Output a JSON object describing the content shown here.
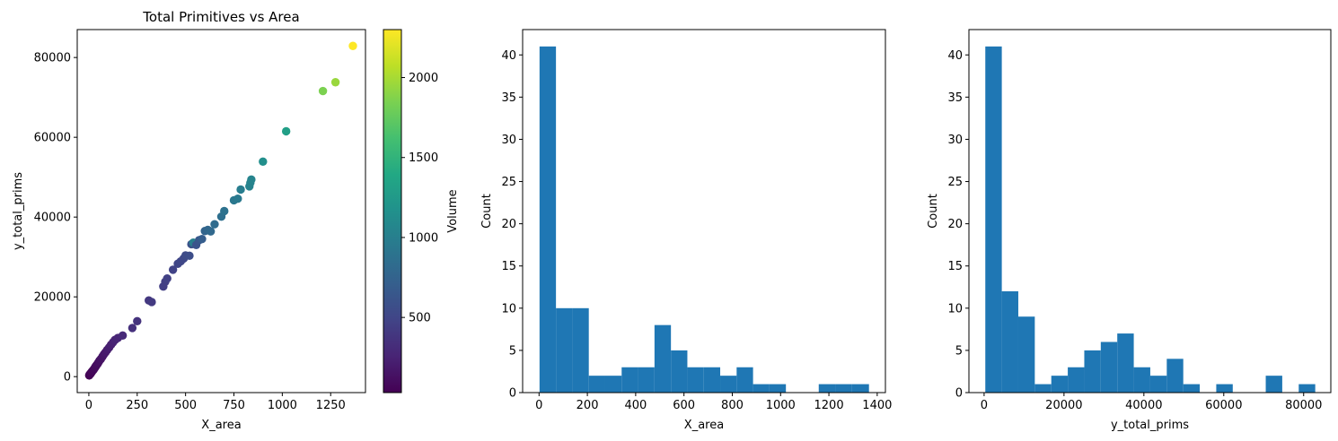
{
  "chart_data": [
    {
      "type": "scatter",
      "title": "Total Primitives vs Area",
      "xlabel": "X_area",
      "ylabel": "y_total_prims",
      "xlim": [
        -60,
        1430
      ],
      "ylim": [
        -4000,
        87000
      ],
      "xticks": [
        0,
        250,
        500,
        750,
        1000,
        1250
      ],
      "yticks": [
        0,
        20000,
        40000,
        60000,
        80000
      ],
      "grid": false,
      "colorbar": {
        "label": "Volume",
        "range": [
          30,
          2300
        ],
        "ticks": [
          500,
          1000,
          1500,
          2000
        ],
        "colormap": "viridis"
      },
      "points": [
        {
          "x": 2,
          "y": 300,
          "c": 30
        },
        {
          "x": 4,
          "y": 500,
          "c": 35
        },
        {
          "x": 6,
          "y": 600,
          "c": 40
        },
        {
          "x": 8,
          "y": 700,
          "c": 45
        },
        {
          "x": 10,
          "y": 800,
          "c": 50
        },
        {
          "x": 12,
          "y": 1000,
          "c": 55
        },
        {
          "x": 14,
          "y": 1100,
          "c": 60
        },
        {
          "x": 17,
          "y": 1300,
          "c": 65
        },
        {
          "x": 20,
          "y": 1500,
          "c": 70
        },
        {
          "x": 24,
          "y": 1700,
          "c": 75
        },
        {
          "x": 28,
          "y": 2000,
          "c": 80
        },
        {
          "x": 32,
          "y": 2300,
          "c": 90
        },
        {
          "x": 36,
          "y": 2600,
          "c": 95
        },
        {
          "x": 40,
          "y": 2900,
          "c": 100
        },
        {
          "x": 45,
          "y": 3200,
          "c": 110
        },
        {
          "x": 50,
          "y": 3600,
          "c": 120
        },
        {
          "x": 55,
          "y": 4000,
          "c": 130
        },
        {
          "x": 62,
          "y": 4400,
          "c": 140
        },
        {
          "x": 70,
          "y": 5000,
          "c": 155
        },
        {
          "x": 78,
          "y": 5600,
          "c": 170
        },
        {
          "x": 86,
          "y": 6100,
          "c": 185
        },
        {
          "x": 95,
          "y": 6700,
          "c": 200
        },
        {
          "x": 105,
          "y": 7300,
          "c": 215
        },
        {
          "x": 115,
          "y": 8000,
          "c": 230
        },
        {
          "x": 125,
          "y": 8600,
          "c": 245
        },
        {
          "x": 135,
          "y": 9200,
          "c": 255
        },
        {
          "x": 150,
          "y": 9700,
          "c": 270
        },
        {
          "x": 175,
          "y": 10300,
          "c": 300
        },
        {
          "x": 225,
          "y": 12200,
          "c": 340
        },
        {
          "x": 250,
          "y": 13900,
          "c": 360
        },
        {
          "x": 310,
          "y": 19100,
          "c": 400
        },
        {
          "x": 325,
          "y": 18700,
          "c": 410
        },
        {
          "x": 385,
          "y": 22600,
          "c": 440
        },
        {
          "x": 395,
          "y": 23800,
          "c": 450
        },
        {
          "x": 405,
          "y": 24600,
          "c": 460
        },
        {
          "x": 435,
          "y": 26800,
          "c": 480
        },
        {
          "x": 460,
          "y": 28300,
          "c": 500
        },
        {
          "x": 475,
          "y": 28900,
          "c": 510
        },
        {
          "x": 490,
          "y": 29600,
          "c": 520
        },
        {
          "x": 500,
          "y": 30400,
          "c": 540
        },
        {
          "x": 520,
          "y": 30300,
          "c": 560
        },
        {
          "x": 530,
          "y": 33200,
          "c": 600
        },
        {
          "x": 540,
          "y": 33600,
          "c": 1000
        },
        {
          "x": 555,
          "y": 33000,
          "c": 620
        },
        {
          "x": 570,
          "y": 34200,
          "c": 640
        },
        {
          "x": 585,
          "y": 34500,
          "c": 700
        },
        {
          "x": 600,
          "y": 36500,
          "c": 760
        },
        {
          "x": 615,
          "y": 36800,
          "c": 780
        },
        {
          "x": 630,
          "y": 36400,
          "c": 800
        },
        {
          "x": 650,
          "y": 38200,
          "c": 820
        },
        {
          "x": 685,
          "y": 40100,
          "c": 860
        },
        {
          "x": 700,
          "y": 41500,
          "c": 880
        },
        {
          "x": 750,
          "y": 44200,
          "c": 930
        },
        {
          "x": 770,
          "y": 44600,
          "c": 950
        },
        {
          "x": 785,
          "y": 46900,
          "c": 980
        },
        {
          "x": 830,
          "y": 47700,
          "c": 1030
        },
        {
          "x": 835,
          "y": 48600,
          "c": 1040
        },
        {
          "x": 840,
          "y": 49400,
          "c": 1050
        },
        {
          "x": 900,
          "y": 53900,
          "c": 1150
        },
        {
          "x": 1020,
          "y": 61500,
          "c": 1300
        },
        {
          "x": 1210,
          "y": 71600,
          "c": 1850
        },
        {
          "x": 1275,
          "y": 73800,
          "c": 1950
        },
        {
          "x": 1365,
          "y": 82900,
          "c": 2300
        }
      ]
    },
    {
      "type": "bar",
      "subtype": "histogram",
      "xlabel": "X_area",
      "ylabel": "Count",
      "xlim": [
        -68,
        1434
      ],
      "ylim": [
        0,
        43
      ],
      "xticks": [
        0,
        200,
        400,
        600,
        800,
        1000,
        1200,
        1400
      ],
      "yticks": [
        0,
        5,
        10,
        15,
        20,
        25,
        30,
        35,
        40
      ],
      "bin_edges": [
        2,
        70,
        138,
        206,
        274,
        342,
        410,
        478,
        546,
        614,
        682,
        750,
        818,
        886,
        954,
        1022,
        1090,
        1158,
        1226,
        1294,
        1366
      ],
      "values": [
        41,
        10,
        10,
        2,
        2,
        3,
        3,
        8,
        5,
        3,
        3,
        2,
        3,
        1,
        1,
        0,
        0,
        1,
        1,
        1
      ],
      "color": "#1f77b4"
    },
    {
      "type": "bar",
      "subtype": "histogram",
      "xlabel": "y_total_prims",
      "ylabel": "Count",
      "xlim": [
        -3800,
        86800
      ],
      "ylim": [
        0,
        43
      ],
      "xticks": [
        0,
        20000,
        40000,
        60000,
        80000
      ],
      "yticks": [
        0,
        5,
        10,
        15,
        20,
        25,
        30,
        35,
        40
      ],
      "bin_edges": [
        300,
        4430,
        8560,
        12690,
        16820,
        20950,
        25080,
        29210,
        33340,
        37470,
        41600,
        45730,
        49860,
        53990,
        58120,
        62250,
        66380,
        70510,
        74640,
        78770,
        82900
      ],
      "values": [
        41,
        12,
        9,
        1,
        2,
        3,
        5,
        6,
        7,
        3,
        2,
        4,
        1,
        0,
        1,
        0,
        0,
        2,
        0,
        1
      ],
      "color": "#1f77b4"
    }
  ]
}
